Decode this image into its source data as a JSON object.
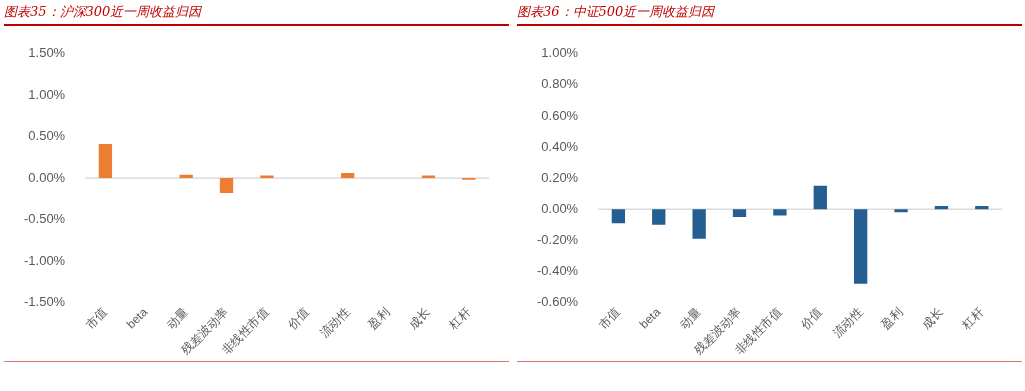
{
  "chart_data": [
    {
      "type": "bar",
      "title": "图表35：沪深300近一周收益归因",
      "categories": [
        "市值",
        "beta",
        "动量",
        "残差波动率",
        "非线性市值",
        "价值",
        "流动性",
        "盈利",
        "成长",
        "杠杆"
      ],
      "values": [
        0.41,
        0,
        0.04,
        -0.18,
        0.03,
        0,
        0.06,
        0,
        0.03,
        -0.02
      ],
      "color": "#ed7d31",
      "ylim": [
        -1.5,
        1.5
      ],
      "yticks": [
        {
          "value": -1.5,
          "label": "-1.50%"
        },
        {
          "value": -1.0,
          "label": "-1.00%"
        },
        {
          "value": -0.5,
          "label": "-0.50%"
        },
        {
          "value": 0,
          "label": "0.00%"
        },
        {
          "value": 0.5,
          "label": "0.50%"
        },
        {
          "value": 1.0,
          "label": "1.00%"
        },
        {
          "value": 1.5,
          "label": "1.50%"
        }
      ]
    },
    {
      "type": "bar",
      "title": "图表36：中证500近一周收益归因",
      "categories": [
        "市值",
        "beta",
        "动量",
        "残差波动率",
        "非线性市值",
        "价值",
        "流动性",
        "盈利",
        "成长",
        "杠杆"
      ],
      "values": [
        -0.09,
        -0.1,
        -0.19,
        -0.05,
        -0.04,
        0.15,
        -0.48,
        -0.02,
        0.02,
        0.02
      ],
      "color": "#255e91",
      "ylim": [
        -0.6,
        1.0
      ],
      "yticks": [
        {
          "value": -0.6,
          "label": "-0.60%"
        },
        {
          "value": -0.4,
          "label": "-0.40%"
        },
        {
          "value": -0.2,
          "label": "-0.20%"
        },
        {
          "value": 0,
          "label": "0.00%"
        },
        {
          "value": 0.2,
          "label": "0.20%"
        },
        {
          "value": 0.4,
          "label": "0.40%"
        },
        {
          "value": 0.6,
          "label": "0.60%"
        },
        {
          "value": 0.8,
          "label": "0.80%"
        },
        {
          "value": 1.0,
          "label": "1.00%"
        }
      ]
    }
  ]
}
